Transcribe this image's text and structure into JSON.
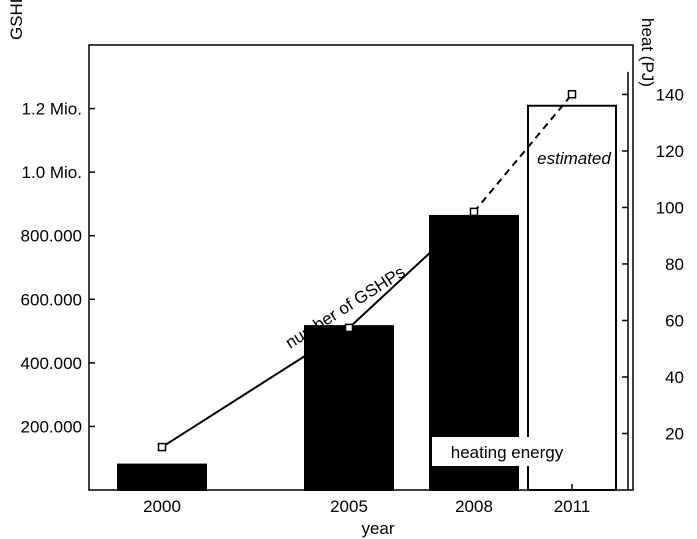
{
  "chart_data": {
    "type": "bar",
    "categories": [
      "2000",
      "2005",
      "2008",
      "2011"
    ],
    "xlabel": "year",
    "y_left_label": "GSHPs",
    "y_right_label": "heat  (PJ)",
    "y_left_ticks": [
      {
        "value": 200000,
        "label": "200.000"
      },
      {
        "value": 400000,
        "label": "400.000"
      },
      {
        "value": 600000,
        "label": "600.000"
      },
      {
        "value": 800000,
        "label": "800.000"
      },
      {
        "value": 1000000,
        "label": "1.0 Mio."
      },
      {
        "value": 1200000,
        "label": "1.2 Mio."
      }
    ],
    "y_right_ticks": [
      {
        "value": 20,
        "label": "20"
      },
      {
        "value": 40,
        "label": "40"
      },
      {
        "value": 60,
        "label": "60"
      },
      {
        "value": 80,
        "label": "80"
      },
      {
        "value": 100,
        "label": "100"
      },
      {
        "value": 120,
        "label": "120"
      },
      {
        "value": 140,
        "label": "140"
      }
    ],
    "y_left_range": [
      0,
      1400000
    ],
    "y_right_range": [
      0,
      140
    ],
    "bars": {
      "name": "heating energy",
      "unit": "PJ",
      "values": [
        9,
        58,
        97,
        136
      ],
      "estimated": [
        false,
        false,
        false,
        true
      ]
    },
    "line": {
      "name": "number of GSHPs",
      "values": [
        135000,
        510000,
        875000,
        1245000
      ],
      "estimated_from_index": 2
    },
    "annotations": {
      "line_label": "number of GSHPs",
      "estimated_label": "estimated",
      "bars_label": "heating energy"
    },
    "grid": false
  }
}
